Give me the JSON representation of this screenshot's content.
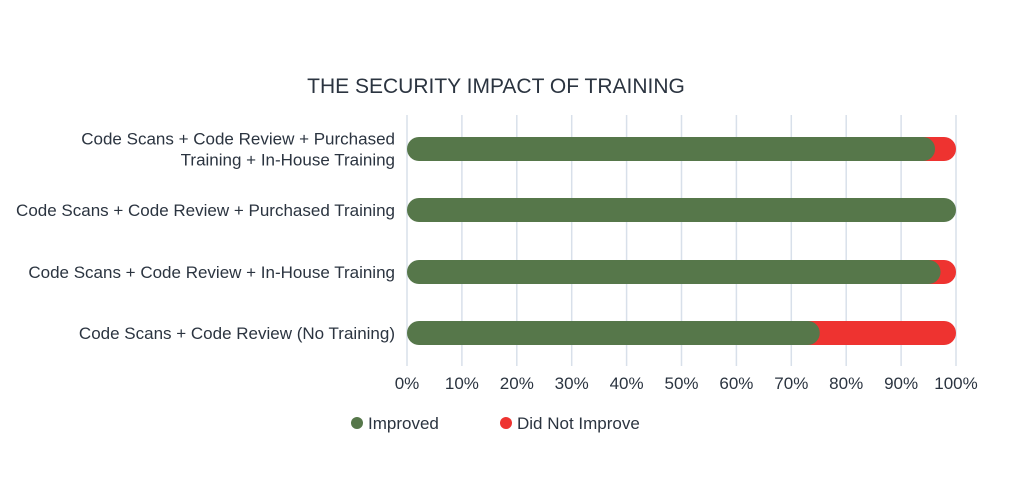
{
  "chart_data": {
    "type": "bar",
    "orientation": "horizontal",
    "stacked": true,
    "title": "THE SECURITY IMPACT OF TRAINING",
    "categories": [
      [
        "Code Scans + Code Review + Purchased",
        "Training + In-House Training"
      ],
      [
        "Code Scans + Code Review + Purchased Training"
      ],
      [
        "Code Scans + Code Review + In-House Training"
      ],
      [
        "Code Scans + Code Review (No Training)"
      ]
    ],
    "series": [
      {
        "name": "Improved",
        "color": "#56774a",
        "values": [
          94,
          100,
          95,
          73
        ]
      },
      {
        "name": "Did Not Improve",
        "color": "#ee3330",
        "values": [
          6,
          0,
          5,
          27
        ]
      }
    ],
    "xlim": [
      0,
      100
    ],
    "xticks": [
      "0%",
      "10%",
      "20%",
      "30%",
      "40%",
      "50%",
      "60%",
      "70%",
      "80%",
      "90%",
      "100%"
    ],
    "grid": "vertical",
    "legend": "bottom",
    "gridColor": "#d8e0ea"
  }
}
